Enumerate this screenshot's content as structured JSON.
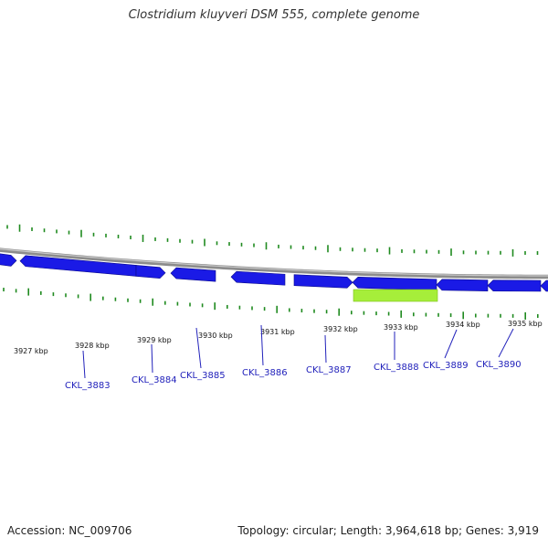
{
  "title": "Clostridium kluyveri DSM 555, complete genome",
  "footer": {
    "accession": "Accession: NC_009706",
    "summary": "Topology: circular; Length: 3,964,618 bp; Genes: 3,919"
  },
  "colors": {
    "gene_forward": "#1a1ae6",
    "gene_highlight": "#a6ee3a",
    "tick": "#1f8a1f",
    "label": "#2222bb",
    "backbone": "#8c8c8c"
  },
  "kbp_labels": [
    "3927 kbp",
    "3928 kbp",
    "3929 kbp",
    "3930 kbp",
    "3931 kbp",
    "3932 kbp",
    "3933 kbp",
    "3934 kbp",
    "3935 kbp"
  ],
  "gene_labels": [
    "CKL_3883",
    "CKL_3884",
    "CKL_3885",
    "CKL_3886",
    "CKL_3887",
    "CKL_3888",
    "CKL_3889",
    "CKL_3890"
  ]
}
